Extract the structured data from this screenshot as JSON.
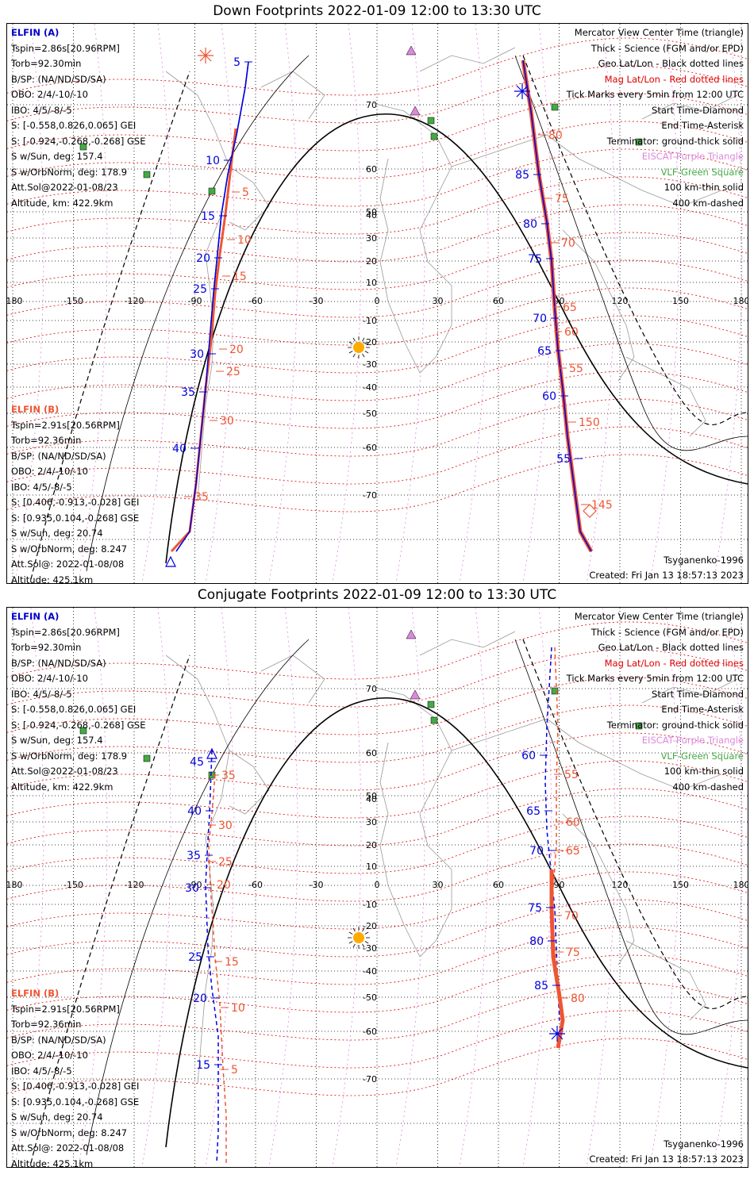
{
  "panels": [
    {
      "title": "Down Footprints 2022-01-09 12:00 to 13:30 UTC",
      "elfin_a": [
        "ELFIN (A)",
        "Tspin=2.86s[20.96RPM]",
        "Torb=92.30min",
        "B/SP: (NA/ND/SD/SA)",
        "OBO: 2/4/-10/-10",
        "IBO: 4/5/-8/-5",
        "S: [-0.558,0.826,0.065] GEI",
        "S: [-0.924,-0.268,-0.268] GSE",
        "S w/Sun, deg: 157.4",
        "S w/OrbNorm, deg: 178.9",
        "Att.Sol@2022-01-08/23",
        "Altitude, km: 422.9km"
      ],
      "elfin_b": [
        "ELFIN (B)",
        "Tspin=2.91s[20.56RPM]",
        "Torb=92.36min",
        "B/SP: (NA/ND/SD/SA)",
        "OBO: 2/4/-10/-10",
        "IBO: 4/5/-8/-5",
        "S: [0.406,-0.913,-0.028] GEI",
        "S: [0.935,0.104,-0.268] GSE",
        "S w/Sun, deg: 20.74",
        "S w/OrbNorm, deg: 8.247",
        "Att.Sol@: 2022-01-08/08",
        "Altitude: 425.1km"
      ],
      "legend": [
        "Mercator View Center Time (triangle)",
        "Thick - Science (FGM and/or EPD)",
        "Geo Lat/Lon - Black dotted lines",
        "Mag Lat/Lon - Red dotted lines",
        "Tick Marks every 5min from 12:00 UTC",
        "Start Time-Diamond",
        "End Time-Asterisk",
        "Terminator: ground-thick solid",
        "EISCAT-Purple Triangle",
        "VLF-Green Square",
        "100 km-thin solid",
        "400 km-dashed"
      ],
      "model": "Tsyganenko-1996",
      "created": "Created: Fri Jan 13 18:57:13 2023",
      "ticks_a_left": [
        "5",
        "10",
        "15",
        "20",
        "25",
        "30",
        "35",
        "40"
      ],
      "ticks_b_left": [
        "5",
        "10",
        "15",
        "20",
        "25",
        "30",
        "35"
      ],
      "ticks_a_right": [
        "85",
        "80",
        "75",
        "70",
        "65",
        "60",
        "55"
      ],
      "ticks_b_right": [
        "80",
        "75",
        "70",
        "65",
        "60",
        "55",
        "150",
        "145"
      ]
    },
    {
      "title": "Conjugate Footprints 2022-01-09 12:00 to 13:30 UTC",
      "elfin_a": [
        "ELFIN (A)",
        "Tspin=2.86s[20.96RPM]",
        "Torb=92.30min",
        "B/SP: (NA/ND/SD/SA)",
        "OBO: 2/4/-10/-10",
        "IBO: 4/5/-8/-5",
        "S: [-0.558,0.826,0.065] GEI",
        "S: [-0.924,-0.268,-0.268] GSE",
        "S w/Sun, deg: 157.4",
        "S w/OrbNorm, deg: 178.9",
        "Att.Sol@2022-01-08/23",
        "Altitude, km: 422.9km"
      ],
      "elfin_b": [
        "ELFIN (B)",
        "Tspin=2.91s[20.56RPM]",
        "Torb=92.36min",
        "B/SP: (NA/ND/SD/SA)",
        "OBO: 2/4/-10/-10",
        "IBO: 4/5/-8/-5",
        "S: [0.406,-0.913,-0.028] GEI",
        "S: [0.935,0.104,-0.268] GSE",
        "S w/Sun, deg: 20.74",
        "S w/OrbNorm, deg: 8.247",
        "Att.Sol@: 2022-01-08/08",
        "Altitude: 425.1km"
      ],
      "legend": [
        "Mercator View Center Time (triangle)",
        "Thick - Science (FGM and/or EPD)",
        "Geo Lat/Lon - Black dotted lines",
        "Mag Lat/Lon - Red dotted lines",
        "Tick Marks every 5min from 12:00 UTC",
        "Start Time-Diamond",
        "End Time-Asterisk",
        "Terminator: ground-thick solid",
        "EISCAT-Purple Triangle",
        "VLF-Green Square",
        "100 km-thin solid",
        "400 km-dashed"
      ],
      "model": "Tsyganenko-1996",
      "created": "Created: Fri Jan 13 18:57:13 2023",
      "ticks_a_left": [
        "45",
        "40",
        "35",
        "30",
        "25",
        "20",
        "15"
      ],
      "ticks_b_left": [
        "35",
        "30",
        "25",
        "20",
        "15",
        "10",
        "5"
      ],
      "ticks_a_right": [
        "60",
        "65",
        "70",
        "75",
        "80",
        "85"
      ],
      "ticks_b_right": [
        "55",
        "60",
        "65",
        "70",
        "75",
        "80"
      ]
    }
  ],
  "axis": {
    "lon_labels": [
      "-180",
      "-150",
      "-120",
      "-90",
      "-60",
      "-30",
      "0",
      "30",
      "60",
      "90",
      "120",
      "150",
      "180"
    ],
    "lat_labels": [
      "70",
      "60",
      "50",
      "40",
      "30",
      "20",
      "10",
      "0",
      "-10",
      "-20",
      "-30",
      "-40",
      "-50",
      "-60",
      "-70"
    ]
  },
  "colors": {
    "elfin_a": "#0000dd",
    "elfin_b": "#ee5533",
    "mag_grid": "#dd0000",
    "terminator": "#000000",
    "eiscat": "#dd88dd",
    "vlf": "#44aa44",
    "sun": "#ffaa00"
  }
}
